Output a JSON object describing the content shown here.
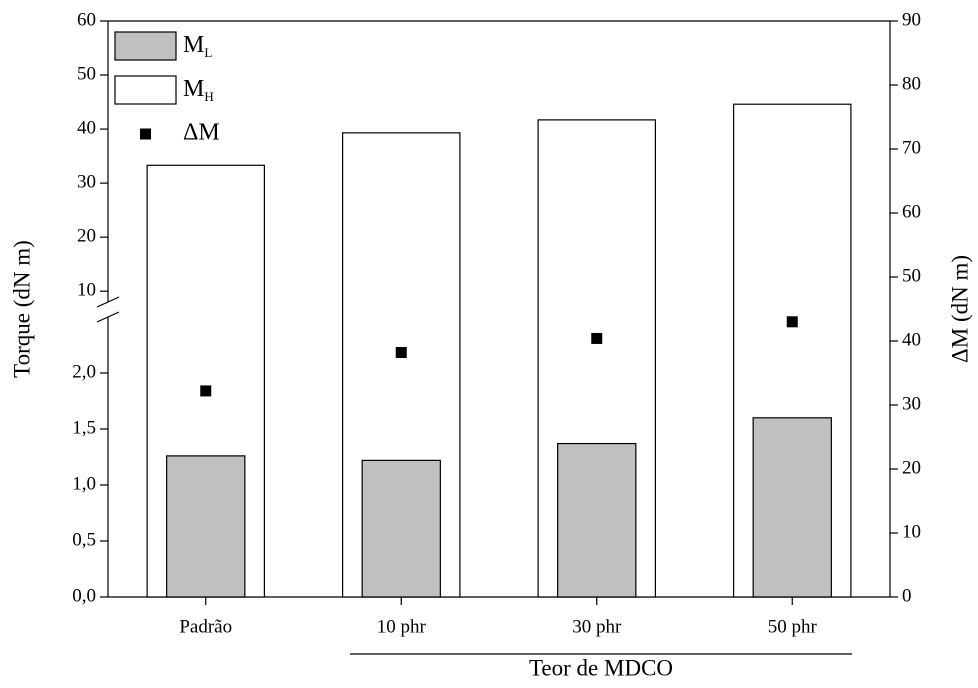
{
  "chart_data": {
    "type": "bar",
    "categories": [
      "Padrão",
      "10 phr",
      "30 phr",
      "50 phr"
    ],
    "x_group_label": "Teor de MDCO",
    "ylabel": "Torque (dN m)",
    "y2label": "ΔM (dN m)",
    "ylim": [
      0,
      2.5
    ],
    "yticks": [
      {
        "value": 0,
        "label": "0,0"
      },
      {
        "value": 0.5,
        "label": "0,5"
      },
      {
        "value": 1,
        "label": "1,0"
      },
      {
        "value": 1.5,
        "label": "1,5"
      },
      {
        "value": 2,
        "label": "2,0"
      }
    ],
    "ylim_upper": [
      8,
      60
    ],
    "yticks_upper": [
      10,
      20,
      30,
      40,
      50,
      60
    ],
    "y2lim": [
      0,
      90
    ],
    "y2ticks": [
      0,
      10,
      20,
      30,
      40,
      50,
      60,
      70,
      80,
      90
    ],
    "series": [
      {
        "name": "ML",
        "type": "bar",
        "axis": "y",
        "color": "#c0c0c0",
        "values": [
          1.26,
          1.22,
          1.37,
          1.6
        ]
      },
      {
        "name": "MH",
        "type": "bar",
        "axis": "y_upper",
        "color": "#ffffff",
        "values": [
          33.3,
          39.3,
          41.7,
          44.6
        ]
      },
      {
        "name": "ΔM",
        "type": "scatter",
        "axis": "y2",
        "color": "#000000",
        "values": [
          32.2,
          38.2,
          40.4,
          43.0
        ]
      }
    ]
  }
}
